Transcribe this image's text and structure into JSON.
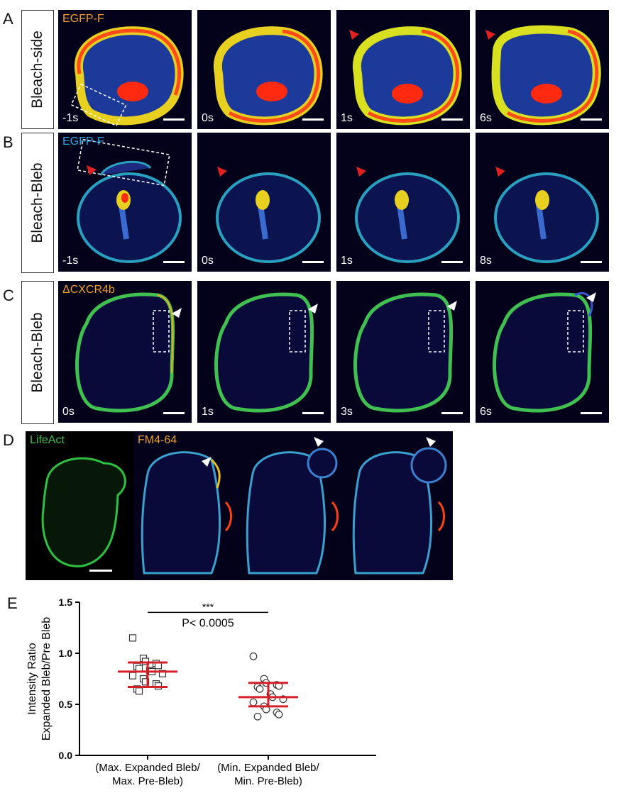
{
  "panels": {
    "A": {
      "letter": "A",
      "label": "Bleach-side",
      "marker": "EGFP-F",
      "marker_color": "#f0a030",
      "times": [
        "-1s",
        "0s",
        "1s",
        "6s"
      ]
    },
    "B": {
      "letter": "B",
      "label": "Bleach-Bleb",
      "marker": "EGFP-F",
      "marker_color": "#2aa8e0",
      "times": [
        "-1s",
        "0s",
        "1s",
        "8s"
      ]
    },
    "C": {
      "letter": "C",
      "label": "Bleach-Bleb",
      "marker": "ΔCXCR4b",
      "marker_color": "#f0a030",
      "times": [
        "0s",
        "1s",
        "3s",
        "6s"
      ]
    },
    "D": {
      "letter": "D",
      "marker1": "LifeAct",
      "marker1_color": "#3ec24a",
      "marker2": "FM4-64",
      "marker2_color": "#f0a030"
    },
    "E": {
      "letter": "E"
    }
  },
  "chart_data": {
    "type": "scatter",
    "ylabel_line1": "Intensity Ratio",
    "ylabel_line2": "Expanded Bleb/Pre Bleb",
    "ylim": [
      0,
      1.5
    ],
    "yticks": [
      "0.0",
      "0.5",
      "1.0",
      "1.5"
    ],
    "categories": [
      "(Max. Expanded Bleb/ Max. Pre-Bleb)",
      "(Min. Expanded Bleb/ Min. Pre-Bleb)"
    ],
    "cat_line1": [
      "(Max. Expanded Bleb/",
      "(Min. Expanded Bleb/"
    ],
    "cat_line2": [
      "Max. Pre-Bleb)",
      "Min. Pre-Bleb)"
    ],
    "series": [
      {
        "marker": "square",
        "values": [
          1.15,
          0.95,
          0.92,
          0.9,
          0.88,
          0.87,
          0.85,
          0.83,
          0.82,
          0.8,
          0.78,
          0.75,
          0.72,
          0.7,
          0.68,
          0.65,
          0.63
        ],
        "mean": 0.82,
        "sd_upper": 0.91,
        "sd_lower": 0.67
      },
      {
        "marker": "circle",
        "values": [
          0.97,
          0.75,
          0.71,
          0.69,
          0.68,
          0.67,
          0.65,
          0.6,
          0.57,
          0.55,
          0.52,
          0.48,
          0.45,
          0.42,
          0.4,
          0.38
        ],
        "mean": 0.57,
        "sd_upper": 0.71,
        "sd_lower": 0.48
      }
    ],
    "stat_stars": "***",
    "stat_p": "P< 0.0005",
    "error_color": "#d62027"
  }
}
